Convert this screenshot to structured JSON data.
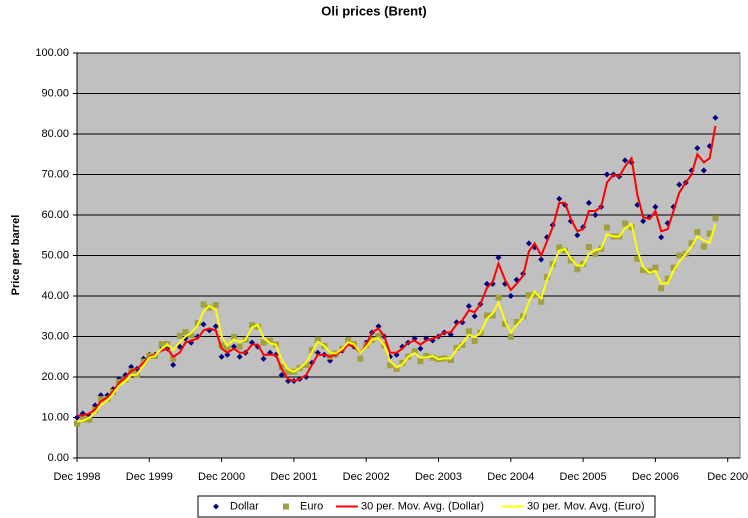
{
  "chart_data": {
    "type": "line",
    "title": "Oli prices (Brent)",
    "y_label": "Price per barrel",
    "xlim": [
      1998.96,
      2008.13
    ],
    "xticks": [
      {
        "value": 1998.96,
        "label": "Dec 1998"
      },
      {
        "value": 1999.96,
        "label": "Dec 1999"
      },
      {
        "value": 2000.96,
        "label": "Dec 2000"
      },
      {
        "value": 2001.96,
        "label": "Dec 2001"
      },
      {
        "value": 2002.96,
        "label": "Dec 2002"
      },
      {
        "value": 2003.96,
        "label": "Dec 2003"
      },
      {
        "value": 2004.96,
        "label": "Dec 2004"
      },
      {
        "value": 2005.96,
        "label": "Dec 2005"
      },
      {
        "value": 2006.96,
        "label": "Dec 2006"
      },
      {
        "value": 2007.96,
        "label": "Dec 200"
      }
    ],
    "ylim": [
      0,
      100
    ],
    "yticks": [
      {
        "value": 0,
        "label": "0.00"
      },
      {
        "value": 10,
        "label": "10.00"
      },
      {
        "value": 20,
        "label": "20.00"
      },
      {
        "value": 30,
        "label": "30.00"
      },
      {
        "value": 40,
        "label": "40.00"
      },
      {
        "value": 50,
        "label": "50.00"
      },
      {
        "value": 60,
        "label": "60.00"
      },
      {
        "value": 70,
        "label": "70.00"
      },
      {
        "value": 80,
        "label": "80.00"
      },
      {
        "value": 90,
        "label": "90.00"
      },
      {
        "value": 100,
        "label": "100.00"
      }
    ],
    "grid": true,
    "legend": "bottom",
    "x": [
      1998.96,
      1999.04,
      1999.13,
      1999.21,
      1999.29,
      1999.38,
      1999.46,
      1999.54,
      1999.63,
      1999.71,
      1999.79,
      1999.88,
      1999.96,
      2000.04,
      2000.13,
      2000.21,
      2000.29,
      2000.38,
      2000.46,
      2000.54,
      2000.63,
      2000.71,
      2000.79,
      2000.88,
      2000.96,
      2001.04,
      2001.13,
      2001.21,
      2001.29,
      2001.38,
      2001.46,
      2001.54,
      2001.63,
      2001.71,
      2001.79,
      2001.88,
      2001.96,
      2002.04,
      2002.13,
      2002.21,
      2002.29,
      2002.38,
      2002.46,
      2002.54,
      2002.63,
      2002.71,
      2002.79,
      2002.88,
      2002.96,
      2003.04,
      2003.13,
      2003.21,
      2003.29,
      2003.38,
      2003.46,
      2003.54,
      2003.63,
      2003.71,
      2003.79,
      2003.88,
      2003.96,
      2004.04,
      2004.13,
      2004.21,
      2004.29,
      2004.38,
      2004.46,
      2004.54,
      2004.63,
      2004.71,
      2004.79,
      2004.88,
      2004.96,
      2005.04,
      2005.13,
      2005.21,
      2005.29,
      2005.38,
      2005.46,
      2005.54,
      2005.63,
      2005.71,
      2005.79,
      2005.88,
      2005.96,
      2006.04,
      2006.13,
      2006.21,
      2006.29,
      2006.38,
      2006.46,
      2006.54,
      2006.63,
      2006.71,
      2006.79,
      2006.88,
      2006.96,
      2007.04,
      2007.13,
      2007.21,
      2007.29,
      2007.38,
      2007.46,
      2007.54,
      2007.63,
      2007.71,
      2007.79
    ],
    "series": [
      {
        "name": "Dollar",
        "color": "#000080",
        "mark": "diamond",
        "values": [
          10,
          11,
          10.5,
          13,
          15.5,
          15.5,
          17,
          19.5,
          20.5,
          22.5,
          22,
          24.5,
          25.5,
          25.5,
          27.5,
          27,
          23,
          27.5,
          29.5,
          28.5,
          30,
          33,
          31.5,
          32.5,
          25,
          25.5,
          27.5,
          25,
          26,
          28.5,
          27.5,
          24.5,
          26,
          25.5,
          20.5,
          19,
          19,
          19.5,
          20,
          23.5,
          26,
          25.5,
          24,
          25.5,
          26.5,
          28.5,
          27.5,
          24.5,
          28.5,
          31,
          32.5,
          30,
          25,
          25.5,
          27.5,
          28.5,
          29.5,
          27,
          29.5,
          29,
          30,
          31,
          30.5,
          33.5,
          33.5,
          37.5,
          35,
          38,
          43,
          43,
          49.5,
          43,
          40,
          44,
          45.5,
          53,
          52,
          49,
          54.5,
          57.5,
          64,
          62.5,
          58.5,
          55,
          57,
          63,
          60,
          62,
          70,
          70,
          69.5,
          73.5,
          73,
          62.5,
          58.5,
          59.5,
          62,
          54.5,
          58,
          62,
          67.5,
          68,
          71,
          76.5,
          71,
          77,
          84
        ]
      },
      {
        "name": "Euro",
        "color": "#a0a040",
        "mark": "square",
        "values": [
          8.5,
          9.5,
          9.4,
          11.9,
          14.5,
          14.6,
          16.3,
          18.8,
          19.3,
          21.4,
          20.6,
          23.8,
          25.2,
          25.2,
          28.1,
          28.1,
          24.5,
          30.2,
          31.1,
          30.3,
          33.3,
          37.9,
          37.1,
          37.8,
          27.8,
          27.1,
          29.9,
          27.5,
          29.2,
          32.8,
          32.4,
          28.5,
          28.9,
          28.0,
          22.5,
          21.3,
          21.3,
          22.2,
          23.0,
          26.7,
          29.2,
          27.7,
          25.0,
          25.8,
          27.0,
          29.1,
          28.1,
          24.5,
          27.9,
          29.2,
          30.1,
          27.8,
          22.9,
          22.0,
          23.5,
          25.0,
          26.3,
          23.9,
          25.2,
          24.8,
          24.4,
          24.6,
          24.2,
          27.2,
          27.9,
          31.3,
          28.9,
          30.9,
          35.2,
          35.2,
          39.6,
          33.1,
          29.9,
          33.6,
          35.0,
          40.2,
          40.3,
          38.6,
          44.7,
          47.9,
          52.0,
          51.2,
          48.8,
          46.6,
          47.9,
          52.1,
          50.4,
          51.7,
          56.9,
          54.7,
          54.7,
          57.9,
          57.0,
          49.2,
          46.4,
          46.1,
          47.0,
          41.9,
          44.3,
          47.0,
          50.0,
          50.4,
          53.0,
          55.8,
          52.2,
          55.4,
          59.2
        ]
      },
      {
        "name": "30 per. Mov. Avg. (Dollar)",
        "color": "#ff0000",
        "mark": "line",
        "values": [
          10.5,
          10.5,
          11,
          12,
          14,
          15,
          16.5,
          18.5,
          20,
          21.5,
          22,
          23.5,
          25,
          25.5,
          26.5,
          27,
          25,
          26,
          28.5,
          29,
          29.5,
          31.5,
          32,
          31.5,
          27,
          26,
          27,
          26,
          26,
          28,
          28,
          25.5,
          25.5,
          25.5,
          22,
          19.5,
          19,
          19.5,
          20.5,
          23,
          25.5,
          25.5,
          25,
          25.5,
          26.5,
          28,
          27.5,
          26,
          28,
          31,
          32,
          30,
          26,
          26,
          27,
          28.5,
          29,
          28,
          29,
          29.5,
          30,
          31,
          31,
          33,
          34,
          36.5,
          36,
          38,
          42,
          43.5,
          48,
          44,
          41.5,
          43,
          45,
          51,
          53,
          50,
          53.5,
          57,
          63,
          63,
          59,
          56,
          56.5,
          61,
          61,
          62,
          68,
          70,
          69.5,
          72,
          74,
          65,
          59.5,
          59,
          61,
          56,
          56.5,
          61,
          65.5,
          68,
          70,
          75,
          73,
          74,
          82
        ]
      },
      {
        "name": "30 per. Mov. Avg. (Euro)",
        "color": "#ffff00",
        "mark": "line",
        "values": [
          9,
          9.2,
          10,
          11.2,
          13.1,
          14.2,
          15.9,
          17.8,
          18.9,
          20.5,
          20.6,
          22.8,
          24.8,
          25.2,
          27,
          28.1,
          26.6,
          28.6,
          30,
          30.9,
          32.8,
          36.2,
          37.6,
          36.6,
          30,
          27.7,
          29.3,
          28.6,
          29.2,
          32.2,
          32.9,
          29.7,
          28.3,
          28,
          24.2,
          21.9,
          21.3,
          22.2,
          23.6,
          26.1,
          28.7,
          27.7,
          26,
          25.8,
          27,
          28.6,
          28.1,
          26,
          27.5,
          29.2,
          29.6,
          27.8,
          23.9,
          22.4,
          23.1,
          25,
          25.9,
          24.8,
          24.8,
          25.2,
          24.4,
          24.6,
          24.6,
          26.8,
          28.3,
          30.4,
          29.8,
          30.9,
          34.4,
          35.7,
          38.4,
          33.8,
          31,
          32.8,
          34.6,
          38.6,
          41.1,
          39.4,
          43.9,
          47.5,
          51.2,
          51.6,
          49.2,
          47.5,
          47.5,
          50.4,
          51.3,
          51.7,
          55.3,
          54.7,
          54.7,
          56.7,
          57.8,
          51.2,
          47.2,
          45.7,
          46.2,
          43.1,
          43.1,
          46.2,
          48.5,
          50.4,
          52.2,
          54.7,
          53.7,
          53.2,
          57.7
        ]
      }
    ]
  }
}
